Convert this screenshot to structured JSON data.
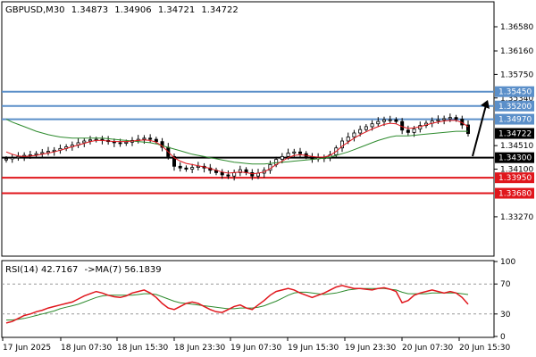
{
  "header": {
    "symbol": "GBPUSD,M30",
    "open": "1.34873",
    "high": "1.34906",
    "low": "1.34721",
    "close": "1.34722"
  },
  "rsi_header": {
    "label": "RSI(14) 42.7167",
    "ma_label": "->MA(7) 56.1839"
  },
  "colors": {
    "resistance": "#5b8fc9",
    "black_level": "#000000",
    "support": "#e0161c",
    "price_badge": "#000000",
    "ma_fast": "#e0161c",
    "ma_slow": "#2e8b2e",
    "rsi": "#e0161c",
    "rsi_ma": "#2e8b2e"
  },
  "chart_data": [
    {
      "type": "candlestick",
      "title": "GBPUSD,M30",
      "ylim": [
        1.326,
        1.37
      ],
      "y_ticks": [
        "1.36580",
        "1.36160",
        "1.35750",
        "1.35340",
        "1.34510",
        "1.34100",
        "1.33270"
      ],
      "x_ticks": [
        "17 Jun 2025",
        "18 Jun 07:30",
        "18 Jun 15:30",
        "18 Jun 23:30",
        "19 Jun 07:30",
        "19 Jun 15:30",
        "19 Jun 23:30",
        "20 Jun 07:30",
        "20 Jun 15:30"
      ],
      "levels": [
        {
          "value": 1.3545,
          "label": "1.35450",
          "kind": "resistance"
        },
        {
          "value": 1.352,
          "label": "1.35200",
          "kind": "resistance"
        },
        {
          "value": 1.3497,
          "label": "1.34970",
          "kind": "resistance"
        },
        {
          "value": 1.343,
          "label": "1.34300",
          "kind": "pivot"
        },
        {
          "value": 1.3395,
          "label": "1.33950",
          "kind": "support"
        },
        {
          "value": 1.3368,
          "label": "1.33680",
          "kind": "support"
        }
      ],
      "current_price": {
        "value": 1.34722,
        "label": "1.34722"
      },
      "close_series": [
        1.3428,
        1.343,
        1.3432,
        1.3434,
        1.3435,
        1.3437,
        1.3439,
        1.3441,
        1.3443,
        1.3446,
        1.3449,
        1.3452,
        1.3456,
        1.3459,
        1.3461,
        1.3462,
        1.346,
        1.3458,
        1.3456,
        1.3455,
        1.3457,
        1.346,
        1.3462,
        1.3464,
        1.3462,
        1.3458,
        1.3448,
        1.3432,
        1.3415,
        1.3412,
        1.341,
        1.3413,
        1.3415,
        1.3412,
        1.3408,
        1.3404,
        1.34,
        1.3398,
        1.3404,
        1.3409,
        1.3404,
        1.3398,
        1.3403,
        1.3408,
        1.3418,
        1.3427,
        1.3432,
        1.3438,
        1.344,
        1.3437,
        1.3432,
        1.3428,
        1.343,
        1.343,
        1.3435,
        1.3447,
        1.3459,
        1.3466,
        1.3473,
        1.3479,
        1.3484,
        1.3489,
        1.3493,
        1.3496,
        1.3496,
        1.3493,
        1.3478,
        1.3474,
        1.348,
        1.3486,
        1.349,
        1.3494,
        1.3496,
        1.3498,
        1.35,
        1.3497,
        1.3487,
        1.3472
      ],
      "ma_fast": [
        1.344,
        1.3436,
        1.3433,
        1.3432,
        1.3433,
        1.3434,
        1.3436,
        1.3438,
        1.344,
        1.3443,
        1.3446,
        1.3449,
        1.3452,
        1.3455,
        1.3458,
        1.346,
        1.346,
        1.3459,
        1.3458,
        1.3458,
        1.3458,
        1.3459,
        1.346,
        1.3461,
        1.346,
        1.3457,
        1.345,
        1.344,
        1.343,
        1.3424,
        1.342,
        1.3418,
        1.3416,
        1.3414,
        1.3411,
        1.3408,
        1.3405,
        1.3403,
        1.3404,
        1.3405,
        1.3404,
        1.3402,
        1.3403,
        1.3405,
        1.3411,
        1.3418,
        1.3424,
        1.343,
        1.3434,
        1.3435,
        1.3434,
        1.3432,
        1.3431,
        1.3431,
        1.3434,
        1.3441,
        1.345,
        1.3457,
        1.3464,
        1.347,
        1.3475,
        1.348,
        1.3484,
        1.3488,
        1.349,
        1.3489,
        1.3484,
        1.3481,
        1.3482,
        1.3484,
        1.3487,
        1.349,
        1.3492,
        1.3494,
        1.3495,
        1.3495,
        1.3491,
        1.3484
      ],
      "ma_slow": [
        1.3497,
        1.3492,
        1.3488,
        1.3484,
        1.348,
        1.3476,
        1.3473,
        1.347,
        1.3468,
        1.3466,
        1.3465,
        1.3464,
        1.3464,
        1.3464,
        1.3464,
        1.3464,
        1.3464,
        1.3463,
        1.3462,
        1.3461,
        1.346,
        1.3459,
        1.3458,
        1.3457,
        1.3456,
        1.3454,
        1.3451,
        1.3448,
        1.3445,
        1.3442,
        1.3439,
        1.3436,
        1.3434,
        1.3432,
        1.343,
        1.3428,
        1.3426,
        1.3424,
        1.3422,
        1.3421,
        1.342,
        1.3419,
        1.3419,
        1.3419,
        1.342,
        1.3421,
        1.3422,
        1.3423,
        1.3424,
        1.3425,
        1.3426,
        1.3427,
        1.3428,
        1.3429,
        1.3431,
        1.3434,
        1.3437,
        1.344,
        1.3444,
        1.3448,
        1.3452,
        1.3456,
        1.346,
        1.3463,
        1.3466,
        1.3468,
        1.3468,
        1.3468,
        1.3469,
        1.347,
        1.3471,
        1.3472,
        1.3473,
        1.3474,
        1.3475,
        1.3476,
        1.3476,
        1.3476
      ]
    },
    {
      "type": "line",
      "title": "RSI(14) 42.7167 ->MA(7) 56.1839",
      "ylim": [
        0,
        100
      ],
      "y_ticks": [
        "100",
        "70",
        "30",
        "0"
      ],
      "levels": [
        70,
        30
      ],
      "series": [
        {
          "name": "RSI(14)",
          "values": [
            18,
            20,
            24,
            28,
            30,
            33,
            35,
            38,
            40,
            42,
            44,
            46,
            50,
            54,
            57,
            60,
            58,
            55,
            53,
            52,
            54,
            58,
            60,
            62,
            58,
            52,
            44,
            38,
            36,
            40,
            44,
            46,
            44,
            40,
            36,
            33,
            32,
            36,
            40,
            42,
            38,
            36,
            42,
            48,
            55,
            60,
            62,
            64,
            62,
            58,
            55,
            52,
            55,
            58,
            62,
            66,
            68,
            66,
            64,
            64,
            63,
            62,
            64,
            65,
            63,
            60,
            45,
            48,
            55,
            58,
            60,
            62,
            60,
            58,
            60,
            58,
            52,
            43
          ]
        },
        {
          "name": "MA(7)",
          "values": [
            22,
            22,
            23,
            24,
            26,
            28,
            30,
            32,
            34,
            37,
            39,
            41,
            43,
            46,
            49,
            52,
            54,
            55,
            55,
            55,
            55,
            55,
            56,
            57,
            57,
            56,
            53,
            50,
            47,
            45,
            44,
            43,
            42,
            41,
            40,
            39,
            38,
            37,
            37,
            38,
            38,
            38,
            39,
            41,
            44,
            47,
            51,
            55,
            58,
            59,
            59,
            58,
            57,
            56,
            57,
            58,
            60,
            62,
            63,
            64,
            64,
            64,
            64,
            64,
            63,
            62,
            59,
            57,
            57,
            57,
            57,
            58,
            58,
            58,
            58,
            58,
            57,
            56
          ]
        }
      ]
    }
  ]
}
